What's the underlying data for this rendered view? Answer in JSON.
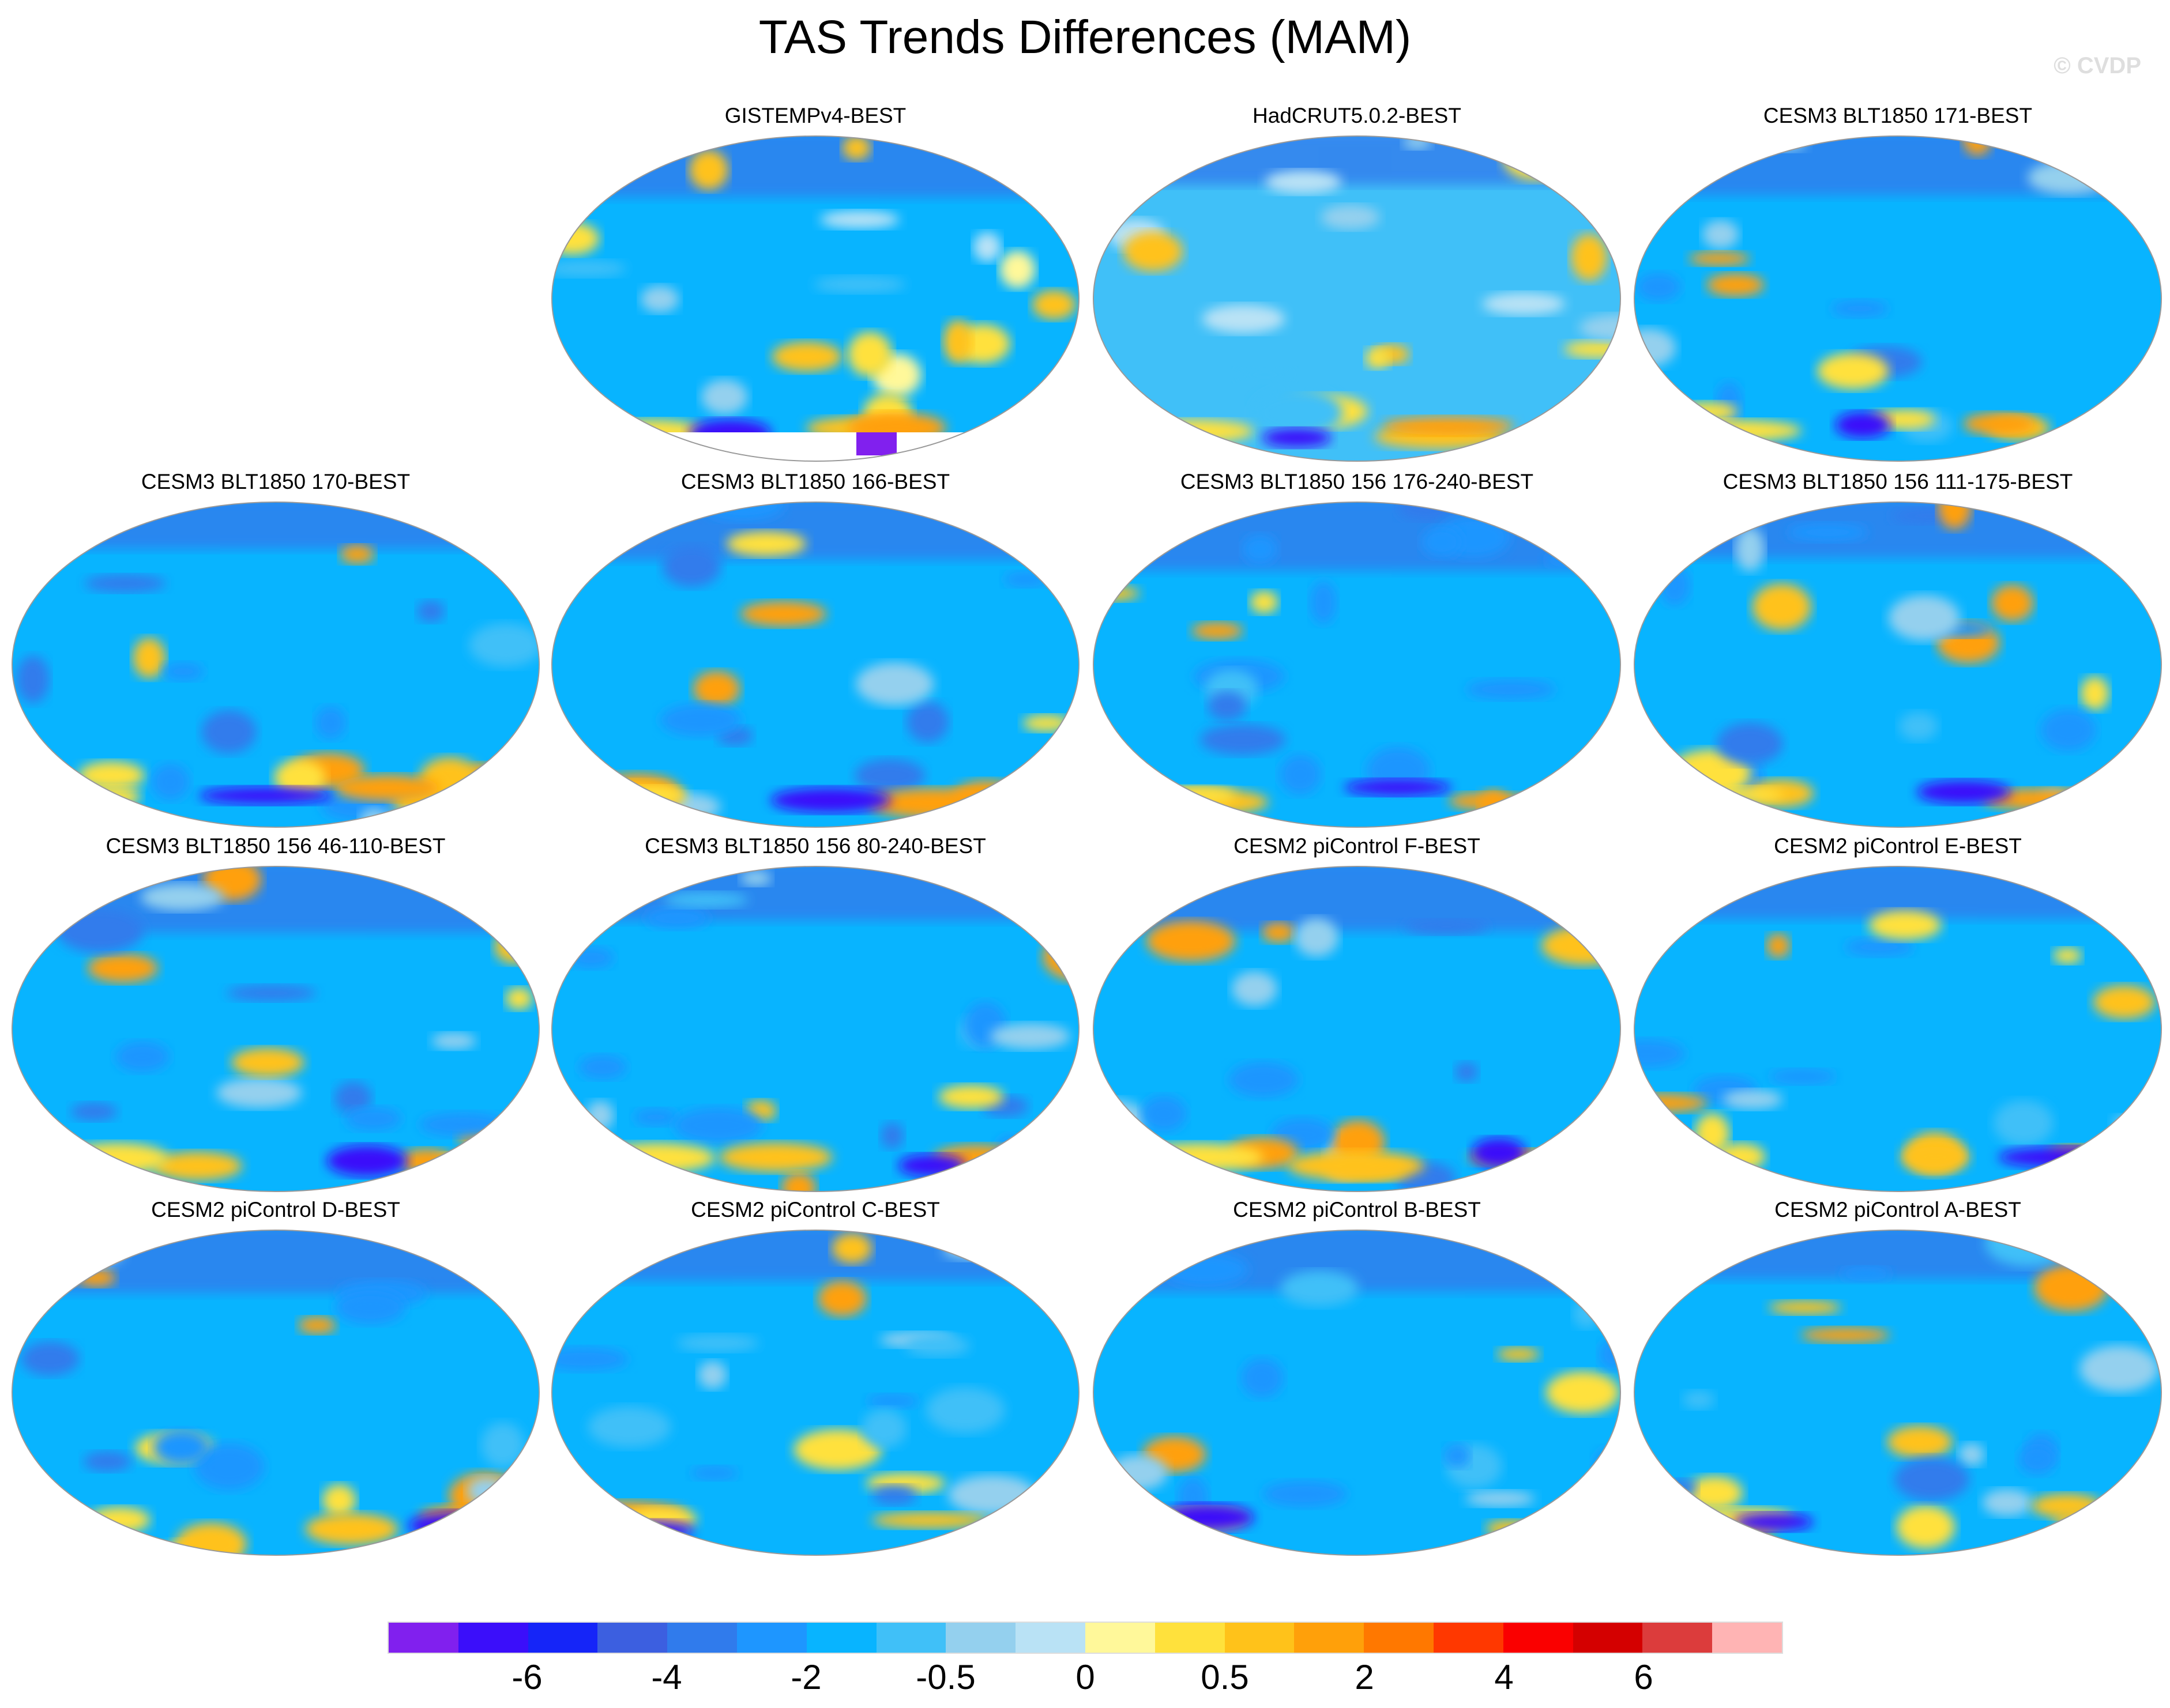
{
  "chart_data": {
    "type": "heatmap",
    "title": "TAS Trends Differences (MAM)",
    "credit": "© CVDP",
    "projection": "global map",
    "panels": [
      {
        "title": "GISTEMPv4-BEST",
        "empty": false
      },
      {
        "title": "HadCRUT5.0.2-BEST"
      },
      {
        "title": "CESM3 BLT1850 171-BEST"
      },
      {
        "title": "CESM3 BLT1850 170-BEST"
      },
      {
        "title": "CESM3 BLT1850 166-BEST"
      },
      {
        "title": "CESM3 BLT1850 156 176-240-BEST"
      },
      {
        "title": "CESM3 BLT1850 156 111-175-BEST"
      },
      {
        "title": "CESM3 BLT1850 156 46-110-BEST"
      },
      {
        "title": "CESM3 BLT1850 156 80-240-BEST"
      },
      {
        "title": "CESM2 piControl F-BEST"
      },
      {
        "title": "CESM2 piControl E-BEST"
      },
      {
        "title": "CESM2 piControl D-BEST"
      },
      {
        "title": "CESM2 piControl C-BEST"
      },
      {
        "title": "CESM2 piControl B-BEST"
      },
      {
        "title": "CESM2 piControl A-BEST"
      }
    ],
    "colorbar": {
      "colors": [
        "#8120EE",
        "#3B0EFA",
        "#1525F8",
        "#3C5FE0",
        "#307BEC",
        "#1E96FF",
        "#08B4FF",
        "#40C0F8",
        "#94D0EE",
        "#B9E2F5",
        "#FFF89A",
        "#FFE13C",
        "#FFC21A",
        "#FFA00A",
        "#FF7800",
        "#FF3800",
        "#FA0000",
        "#D40000",
        "#DC3C3C",
        "#FFB4B4"
      ],
      "labels": [
        {
          "text": "-6",
          "boundary": 2
        },
        {
          "text": "-4",
          "boundary": 4
        },
        {
          "text": "-2",
          "boundary": 6
        },
        {
          "text": "-0.5",
          "boundary": 8
        },
        {
          "text": "0",
          "boundary": 10
        },
        {
          "text": "0.5",
          "boundary": 12
        },
        {
          "text": "2",
          "boundary": 14
        },
        {
          "text": "4",
          "boundary": 16
        },
        {
          "text": "6",
          "boundary": 18
        }
      ]
    }
  }
}
